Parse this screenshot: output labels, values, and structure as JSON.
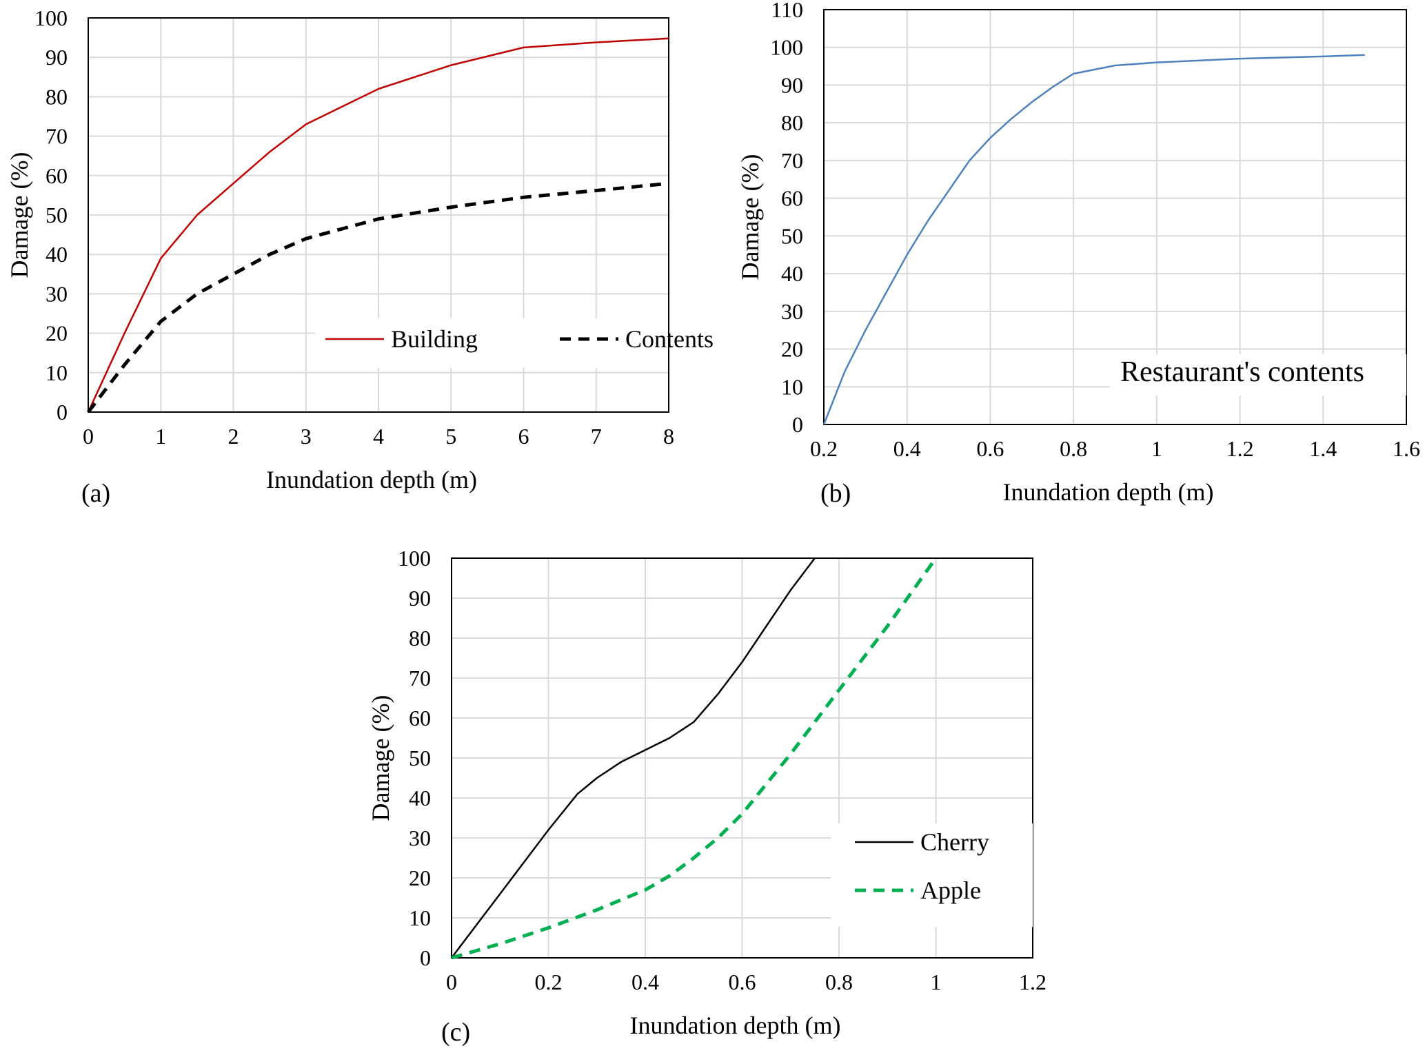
{
  "chart_data": [
    {
      "type": "line",
      "panel_label": "(a)",
      "xlabel": "Inundation  depth (m)",
      "ylabel": "Damage  (%)",
      "xlim": [
        0,
        8
      ],
      "ylim": [
        0,
        100
      ],
      "xticks": [
        "0",
        "1",
        "2",
        "3",
        "4",
        "5",
        "6",
        "7",
        "8"
      ],
      "yticks": [
        "0",
        "10",
        "20",
        "30",
        "40",
        "50",
        "60",
        "70",
        "80",
        "90",
        "100"
      ],
      "grid": true,
      "legend_position": "bottom-right",
      "annotation": "",
      "series": [
        {
          "name": "Building",
          "color": "#c00000",
          "dash": "solid",
          "x": [
            0,
            0.5,
            1,
            1.5,
            2,
            2.5,
            3,
            4,
            5,
            6,
            7,
            8
          ],
          "y": [
            0,
            20,
            39,
            50,
            58,
            66,
            73,
            82,
            88,
            92.5,
            93.8,
            94.8
          ]
        },
        {
          "name": "Contents",
          "color": "#000000",
          "dash": "dashed",
          "x": [
            0,
            0.5,
            1,
            1.5,
            2,
            2.5,
            3,
            4,
            5,
            6,
            7,
            8
          ],
          "y": [
            0,
            12,
            23,
            30,
            35,
            40,
            44,
            49,
            52,
            54.5,
            56.2,
            58
          ]
        }
      ]
    },
    {
      "type": "line",
      "panel_label": "(b)",
      "xlabel": "Inundation  depth (m)",
      "ylabel": "Damage  (%)",
      "xlim": [
        0.2,
        1.6
      ],
      "ylim": [
        0,
        110
      ],
      "xticks": [
        "0.2",
        "0.4",
        "0.6",
        "0.8",
        "1",
        "1.2",
        "1.4",
        "1.6"
      ],
      "yticks": [
        "0",
        "10",
        "20",
        "30",
        "40",
        "50",
        "60",
        "70",
        "80",
        "90",
        "100",
        "110"
      ],
      "grid": true,
      "legend_position": "none",
      "annotation": "Restaurant's contents",
      "series": [
        {
          "name": "",
          "color": "#4f81bd",
          "dash": "solid",
          "x": [
            0.2,
            0.25,
            0.3,
            0.35,
            0.4,
            0.45,
            0.5,
            0.55,
            0.6,
            0.65,
            0.7,
            0.75,
            0.8,
            0.9,
            1.0,
            1.2,
            1.4,
            1.5
          ],
          "y": [
            0,
            14,
            25,
            35,
            45,
            54,
            62,
            70,
            76,
            81,
            85.5,
            89.5,
            93,
            95.2,
            96,
            97,
            97.6,
            98
          ]
        }
      ]
    },
    {
      "type": "line",
      "panel_label": "(c)",
      "xlabel": "Inundation  depth (m)",
      "ylabel": "Damage  (%)",
      "xlim": [
        0,
        1.2
      ],
      "ylim": [
        0,
        100
      ],
      "xticks": [
        "0",
        "0.2",
        "0.4",
        "0.6",
        "0.8",
        "1",
        "1.2"
      ],
      "yticks": [
        "0",
        "10",
        "20",
        "30",
        "40",
        "50",
        "60",
        "70",
        "80",
        "90",
        "100"
      ],
      "grid": true,
      "legend_position": "bottom-right",
      "annotation": "",
      "series": [
        {
          "name": "Cherry",
          "color": "#000000",
          "dash": "solid",
          "x": [
            0,
            0.05,
            0.1,
            0.15,
            0.2,
            0.26,
            0.3,
            0.35,
            0.4,
            0.45,
            0.5,
            0.55,
            0.6,
            0.65,
            0.7,
            0.75
          ],
          "y": [
            0,
            8,
            16,
            24,
            32,
            41,
            45,
            49,
            52,
            55,
            59,
            66,
            74,
            83,
            92,
            100
          ]
        },
        {
          "name": "Apple",
          "color": "#00b050",
          "dash": "dashed",
          "x": [
            0,
            0.1,
            0.2,
            0.3,
            0.4,
            0.45,
            0.5,
            0.55,
            0.6,
            0.7,
            0.8,
            0.9,
            1.0
          ],
          "y": [
            0,
            3.5,
            7.5,
            12,
            17,
            20.5,
            25,
            30,
            36,
            51,
            67,
            83,
            100
          ]
        }
      ]
    }
  ]
}
